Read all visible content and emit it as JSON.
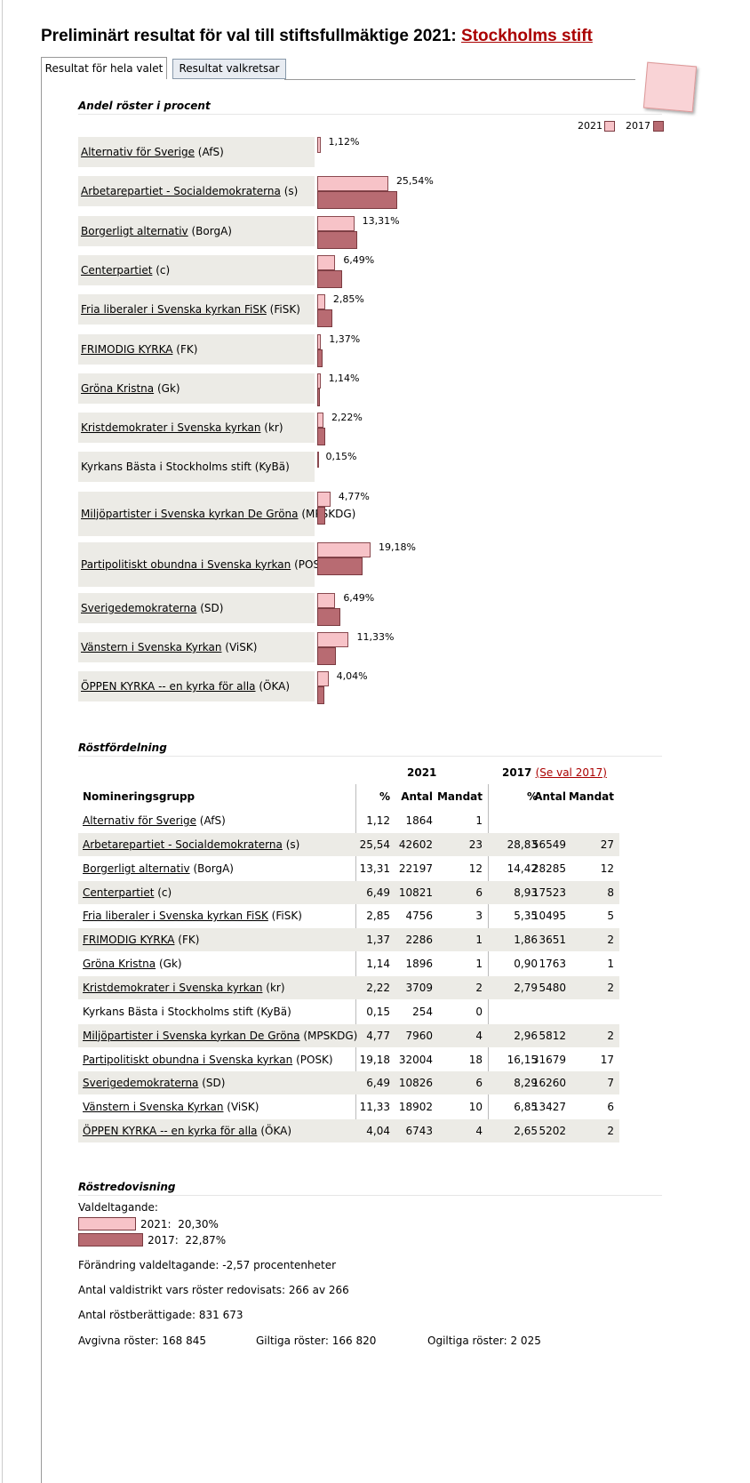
{
  "header": {
    "title": "Preliminärt resultat för val till stiftsfullmäktige 2021:",
    "title_link": "Stockholms stift"
  },
  "tabs": [
    "Resultat för hela valet",
    "Resultat valkretsar"
  ],
  "parties": [
    {
      "name": "Alternativ för Sverige",
      "abbr": "(AfS)",
      "link": true
    },
    {
      "name": "Arbetarepartiet - Socialdemokraterna",
      "abbr": "(s)",
      "link": true
    },
    {
      "name": "Borgerligt alternativ",
      "abbr": "(BorgA)",
      "link": true
    },
    {
      "name": "Centerpartiet",
      "abbr": "(c)",
      "link": true
    },
    {
      "name": "Fria liberaler i Svenska kyrkan FiSK",
      "abbr": "(FiSK)",
      "link": true
    },
    {
      "name": "FRIMODIG KYRKA",
      "abbr": "(FK)",
      "link": true
    },
    {
      "name": "Gröna Kristna",
      "abbr": "(Gk)",
      "link": true
    },
    {
      "name": "Kristdemokrater i Svenska kyrkan",
      "abbr": "(kr)",
      "link": true
    },
    {
      "name": "Kyrkans Bästa i Stockholms stift",
      "abbr": "(KyBä)",
      "link": false
    },
    {
      "name": "Miljöpartister i Svenska kyrkan De Gröna",
      "abbr": "(MPSKDG)",
      "link": true
    },
    {
      "name": "Partipolitiskt obundna i Svenska kyrkan",
      "abbr": "(POSK)",
      "link": true
    },
    {
      "name": "Sverigedemokraterna",
      "abbr": "(SD)",
      "link": true
    },
    {
      "name": "Vänstern i Svenska Kyrkan",
      "abbr": "(ViSK)",
      "link": true
    },
    {
      "name": "ÖPPEN KYRKA -- en kyrka för alla",
      "abbr": "(ÖKA)",
      "link": true
    }
  ],
  "vote_chart": {
    "title": "Andel röster i procent",
    "series": [
      {
        "name": "2021",
        "color": "#f7c3c8",
        "values": [
          1.12,
          25.54,
          13.31,
          6.49,
          2.85,
          1.37,
          1.14,
          2.22,
          0.15,
          4.77,
          19.18,
          6.49,
          11.33,
          4.04
        ],
        "value_labels": [
          "1,12%",
          "25,54%",
          "13,31%",
          "6,49%",
          "2,85%",
          "1,37%",
          "1,14%",
          "2,22%",
          "0,15%",
          "4,77%",
          "19,18%",
          "6,49%",
          "11,33%",
          "4,04%"
        ]
      },
      {
        "name": "2017",
        "color": "#b86b72",
        "values": [
          null,
          28.83,
          14.42,
          8.93,
          5.35,
          1.86,
          0.9,
          2.79,
          null,
          2.96,
          16.15,
          8.29,
          6.85,
          2.65
        ]
      }
    ]
  },
  "table": {
    "title": "Röstfördelning",
    "year1": "2021",
    "year2": "2017",
    "year2_link": "(Se val 2017)",
    "header": [
      "Nomineringsgrupp",
      "%",
      "Antal",
      "Mandat",
      "%",
      "Antal",
      "Mandat"
    ],
    "rows": [
      [
        "1,12",
        "1864",
        "1"
      ],
      [
        "25,54",
        "42602",
        "23",
        "28,83",
        "56549",
        "27"
      ],
      [
        "13,31",
        "22197",
        "12",
        "14,42",
        "28285",
        "12"
      ],
      [
        "6,49",
        "10821",
        "6",
        "8,93",
        "17523",
        "8"
      ],
      [
        "2,85",
        "4756",
        "3",
        "5,35",
        "10495",
        "5"
      ],
      [
        "1,37",
        "2286",
        "1",
        "1,86",
        "3651",
        "2"
      ],
      [
        "1,14",
        "1896",
        "1",
        "0,90",
        "1763",
        "1"
      ],
      [
        "2,22",
        "3709",
        "2",
        "2,79",
        "5480",
        "2"
      ],
      [
        "0,15",
        "254",
        "0"
      ],
      [
        "4,77",
        "7960",
        "4",
        "2,96",
        "5812",
        "2"
      ],
      [
        "19,18",
        "32004",
        "18",
        "16,15",
        "31679",
        "17"
      ],
      [
        "6,49",
        "10826",
        "6",
        "8,29",
        "16260",
        "7"
      ],
      [
        "11,33",
        "18902",
        "10",
        "6,85",
        "13427",
        "6"
      ],
      [
        "4,04",
        "6743",
        "4",
        "2,65",
        "5202",
        "2"
      ]
    ]
  },
  "turnout": {
    "title": "Röstredovisning",
    "label": "Valdeltagande:",
    "items": [
      {
        "year": "2021:",
        "label": "20,30%",
        "value": 20.3
      },
      {
        "year": "2017:",
        "label": "22,87%",
        "value": 22.87
      }
    ],
    "lines": [
      "Förändring valdeltagande: -2,57 procentenheter",
      "Antal valdistrikt vars röster redovisats: 266 av 266",
      "Antal röstberättigade: 831 673"
    ],
    "votes": [
      "Avgivna röster: 168 845",
      "Giltiga röster: 166 820",
      "Ogiltiga röster: 2 025"
    ]
  }
}
